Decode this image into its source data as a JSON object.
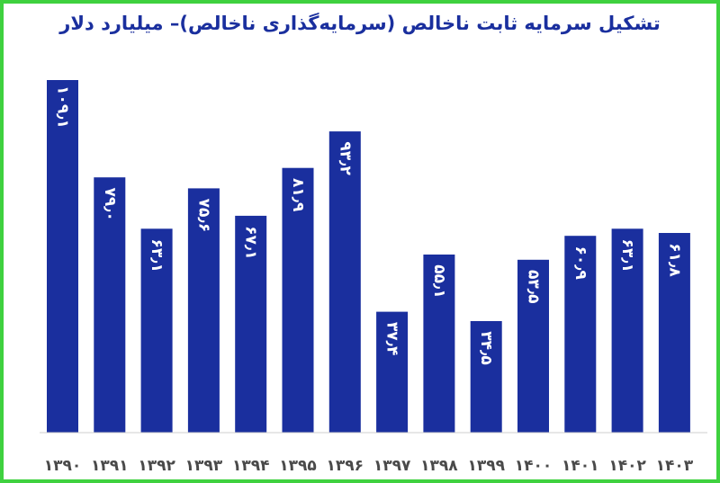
{
  "chart_data": {
    "type": "bar",
    "title": "تشکیل سرمایه ثابت ناخالص (سرمایه‌گذاری ناخالص)– میلیارد دلار",
    "categories": [
      "۱۳۹۰",
      "۱۳۹۱",
      "۱۳۹۲",
      "۱۳۹۳",
      "۱۳۹۴",
      "۱۳۹۵",
      "۱۳۹۶",
      "۱۳۹۷",
      "۱۳۹۸",
      "۱۳۹۹",
      "۱۴۰۰",
      "۱۴۰۱",
      "۱۴۰۲",
      "۱۴۰۳"
    ],
    "values": [
      109.1,
      79.0,
      63.1,
      75.6,
      67.1,
      81.9,
      93.2,
      37.4,
      55.1,
      34.5,
      53.5,
      60.9,
      63.1,
      61.8
    ],
    "value_labels": [
      "۱۰۹٫۱",
      "۷۹٫۰",
      "۶۳٫۱",
      "۷۵٫۶",
      "۶۷٫۱",
      "۸۱٫۹",
      "۹۳٫۲",
      "۳۷٫۴",
      "۵۵٫۱",
      "۳۴٫۵",
      "۵۳٫۵",
      "۶۰٫۹",
      "۶۳٫۱",
      "۶۱٫۸"
    ],
    "ylim": [
      0,
      109.1
    ],
    "grid": false,
    "legend": "none",
    "bar_color": "#1a2f9e",
    "title_color": "#1a2f9e",
    "border_color": "#3fd13f"
  }
}
